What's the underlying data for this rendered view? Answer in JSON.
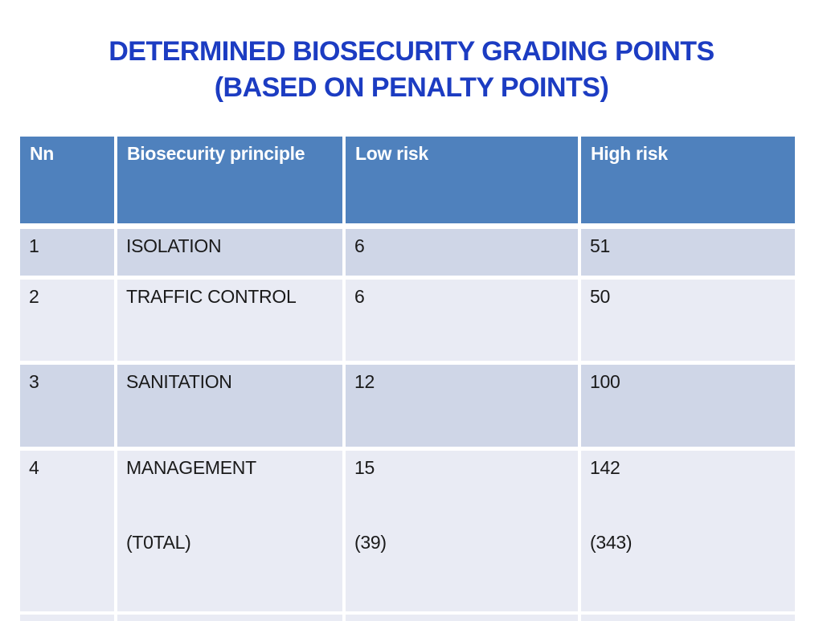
{
  "slide": {
    "background_color": "#FFFFFF",
    "title": {
      "line1": "DETERMINED BIOSECURITY GRADING POINTS",
      "line2": "(BASED ON PENALTY POINTS)",
      "color": "#1C3CC2"
    }
  },
  "table": {
    "header": {
      "nn": "Nn",
      "principle": "Biosecurity principle",
      "low": "Low risk",
      "high": "High risk"
    },
    "rows": [
      {
        "nn": "1",
        "principle": "ISOLATION",
        "low": "6",
        "high": "51"
      },
      {
        "nn": "2",
        "principle": "TRAFFIC CONTROL",
        "low": "6",
        "high": "50"
      },
      {
        "nn": "3",
        "principle": "SANITATION",
        "low": "12",
        "high": "100"
      },
      {
        "nn": "4",
        "principle": "MANAGEMENT",
        "principle2": "(T0TAL)",
        "low": "15",
        "low2": "(39)",
        "high": "142",
        "high2": "(343)"
      }
    ],
    "colors": {
      "header_bg": "#4F81BD",
      "header_text": "#FFFFFF",
      "band_dark": "#CFD6E7",
      "band_light": "#E9EBF4",
      "body_text": "#1A1A1A"
    }
  }
}
